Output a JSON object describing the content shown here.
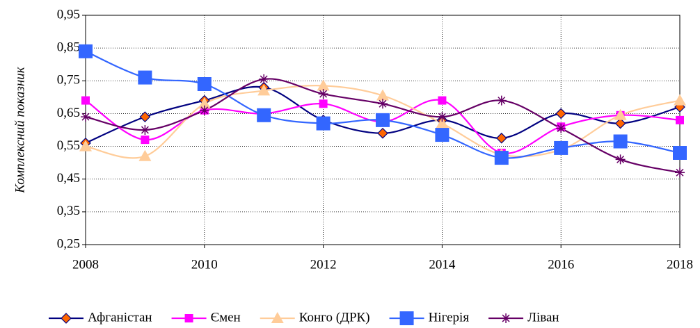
{
  "chart_data": {
    "type": "line",
    "y_label": "Комплексний показник",
    "xlim": [
      2008,
      2018
    ],
    "xticks": [
      2008,
      2010,
      2012,
      2014,
      2016,
      2018
    ],
    "ylim": [
      0.25,
      0.95
    ],
    "yticks": [
      {
        "value": 0.25,
        "label": "0,25"
      },
      {
        "value": 0.35,
        "label": "0,35"
      },
      {
        "value": 0.45,
        "label": "0,45"
      },
      {
        "value": 0.55,
        "label": "0,55"
      },
      {
        "value": 0.65,
        "label": "0,65"
      },
      {
        "value": 0.75,
        "label": "0,75"
      },
      {
        "value": 0.85,
        "label": "0,85"
      },
      {
        "value": 0.95,
        "label": "0,95"
      }
    ],
    "grid": true,
    "legend": "bottom",
    "x": [
      2008,
      2009,
      2010,
      2011,
      2012,
      2013,
      2014,
      2015,
      2016,
      2017,
      2018
    ],
    "series": [
      {
        "name": "Афганістан",
        "color": "#000080",
        "marker": "diamond",
        "marker_color": "#ff6600",
        "values": [
          0.56,
          0.64,
          0.69,
          0.73,
          0.63,
          0.59,
          0.63,
          0.575,
          0.65,
          0.62,
          0.67
        ]
      },
      {
        "name": "Ємен",
        "color": "#ff00ff",
        "marker": "square",
        "marker_color": "#ff00ff",
        "values": [
          0.69,
          0.57,
          0.66,
          0.65,
          0.68,
          0.625,
          0.69,
          0.53,
          0.61,
          0.645,
          0.63
        ]
      },
      {
        "name": "Конго (ДРК)",
        "color": "#ffcc99",
        "marker": "triangle",
        "marker_color": "#ffcc99",
        "values": [
          0.55,
          0.52,
          0.68,
          0.72,
          0.735,
          0.705,
          0.62,
          0.525,
          0.54,
          0.645,
          0.69
        ]
      },
      {
        "name": "Нігерія",
        "color": "#3366ff",
        "marker": "bigsquare",
        "marker_color": "#3366ff",
        "values": [
          0.84,
          0.76,
          0.74,
          0.645,
          0.62,
          0.63,
          0.585,
          0.515,
          0.545,
          0.565,
          0.53
        ]
      },
      {
        "name": "Ліван",
        "color": "#660066",
        "marker": "star",
        "marker_color": "#660066",
        "values": [
          0.64,
          0.6,
          0.66,
          0.755,
          0.71,
          0.68,
          0.64,
          0.69,
          0.605,
          0.51,
          0.47
        ]
      }
    ]
  }
}
